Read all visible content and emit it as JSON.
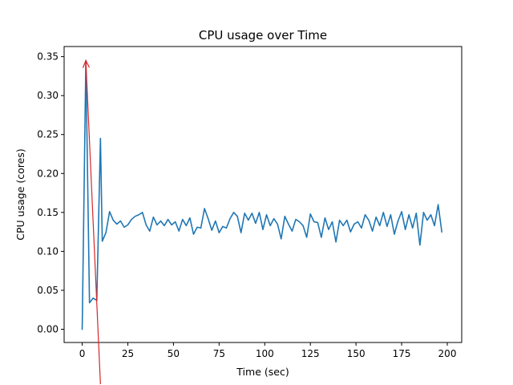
{
  "chart_data": {
    "type": "line",
    "title": "CPU usage over Time",
    "xlabel": "Time (sec)",
    "ylabel": "CPU usage (cores)",
    "xlim": [
      -9.9,
      207.9
    ],
    "ylim": [
      -0.017,
      0.363
    ],
    "xticks": [
      0,
      25,
      50,
      75,
      100,
      125,
      150,
      175,
      200
    ],
    "yticks": [
      0.0,
      0.05,
      0.1,
      0.15,
      0.2,
      0.25,
      0.3,
      0.35
    ],
    "ytick_labels": [
      "0.00",
      "0.05",
      "0.10",
      "0.15",
      "0.20",
      "0.25",
      "0.30",
      "0.35"
    ],
    "grid": false,
    "legend": "none",
    "series": [
      {
        "color": "#1f77b4",
        "x": [
          0,
          2,
          4,
          6,
          8,
          10,
          11,
          13,
          15,
          17,
          19,
          21,
          23,
          25,
          27,
          29,
          31,
          33,
          35,
          37,
          39,
          41,
          43,
          45,
          47,
          49,
          51,
          53,
          55,
          57,
          59,
          61,
          63,
          65,
          67,
          69,
          71,
          73,
          75,
          77,
          79,
          81,
          83,
          85,
          87,
          89,
          91,
          93,
          95,
          97,
          99,
          101,
          103,
          105,
          107,
          109,
          111,
          113,
          115,
          117,
          119,
          121,
          123,
          125,
          127,
          129,
          131,
          133,
          135,
          137,
          139,
          141,
          143,
          145,
          147,
          149,
          151,
          153,
          155,
          157,
          159,
          161,
          163,
          165,
          167,
          169,
          171,
          173,
          175,
          177,
          179,
          181,
          183,
          185,
          187,
          189,
          191,
          193,
          195,
          197
        ],
        "y": [
          0.0,
          0.345,
          0.034,
          0.04,
          0.037,
          0.245,
          0.113,
          0.124,
          0.151,
          0.14,
          0.135,
          0.139,
          0.131,
          0.134,
          0.141,
          0.145,
          0.147,
          0.15,
          0.134,
          0.126,
          0.144,
          0.134,
          0.139,
          0.133,
          0.141,
          0.134,
          0.138,
          0.126,
          0.141,
          0.133,
          0.143,
          0.122,
          0.131,
          0.13,
          0.155,
          0.142,
          0.127,
          0.139,
          0.124,
          0.132,
          0.13,
          0.142,
          0.15,
          0.145,
          0.124,
          0.149,
          0.14,
          0.149,
          0.136,
          0.15,
          0.128,
          0.147,
          0.133,
          0.142,
          0.135,
          0.116,
          0.145,
          0.135,
          0.126,
          0.141,
          0.138,
          0.133,
          0.118,
          0.148,
          0.138,
          0.137,
          0.118,
          0.143,
          0.128,
          0.138,
          0.112,
          0.14,
          0.133,
          0.14,
          0.125,
          0.135,
          0.138,
          0.13,
          0.147,
          0.14,
          0.126,
          0.144,
          0.133,
          0.15,
          0.132,
          0.147,
          0.122,
          0.139,
          0.151,
          0.128,
          0.147,
          0.13,
          0.149,
          0.108,
          0.15,
          0.14,
          0.147,
          0.133,
          0.16,
          0.125
        ]
      }
    ],
    "annotation": {
      "type": "arrow",
      "color": "#d62728",
      "from": [
        10,
        -0.075
      ],
      "to": [
        2,
        0.345
      ]
    }
  }
}
